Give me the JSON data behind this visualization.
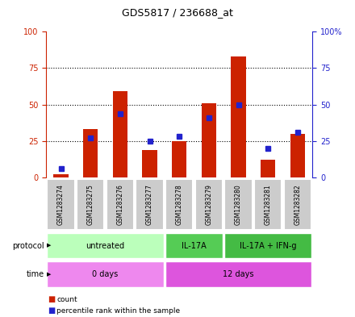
{
  "title": "GDS5817 / 236688_at",
  "samples": [
    "GSM1283274",
    "GSM1283275",
    "GSM1283276",
    "GSM1283277",
    "GSM1283278",
    "GSM1283279",
    "GSM1283280",
    "GSM1283281",
    "GSM1283282"
  ],
  "count_values": [
    2,
    33,
    59,
    19,
    25,
    51,
    83,
    12,
    30
  ],
  "percentile_values": [
    6,
    27,
    44,
    25,
    28,
    41,
    50,
    20,
    31
  ],
  "bar_color": "#cc2200",
  "dot_color": "#2222cc",
  "protocol_colors": [
    "#bbffbb",
    "#55cc55",
    "#44bb44"
  ],
  "protocol_labels": [
    "untreated",
    "IL-17A",
    "IL-17A + IFN-g"
  ],
  "protocol_starts": [
    0,
    4,
    6
  ],
  "protocol_ends": [
    4,
    6,
    9
  ],
  "time_colors": [
    "#ee88ee",
    "#dd55dd"
  ],
  "time_labels": [
    "0 days",
    "12 days"
  ],
  "time_starts": [
    0,
    4
  ],
  "time_ends": [
    4,
    9
  ],
  "ylim": [
    0,
    100
  ],
  "yticks": [
    0,
    25,
    50,
    75,
    100
  ],
  "sample_bg_color": "#cccccc",
  "bar_width": 0.5
}
